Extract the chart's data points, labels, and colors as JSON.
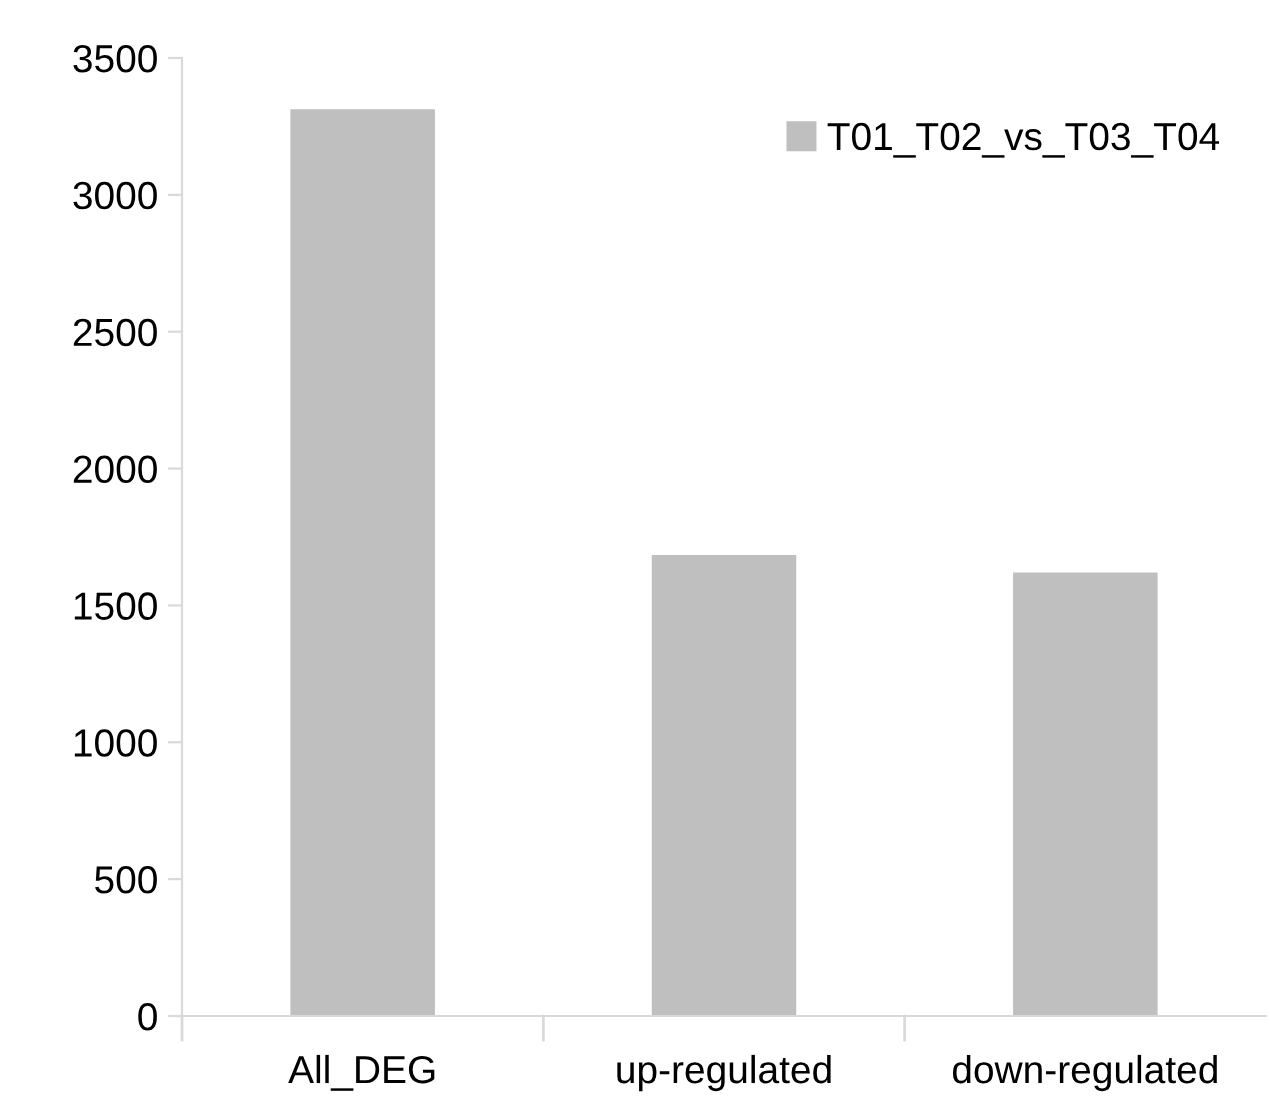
{
  "chart_data": {
    "type": "bar",
    "categories": [
      "All_DEG",
      "up-regulated",
      "down-regulated"
    ],
    "series": [
      {
        "name": "T01_T02_vs_T03_T04",
        "color": "#bfbfbf",
        "values": [
          3313,
          1684,
          1620
        ]
      }
    ],
    "ylim": [
      0,
      3500
    ],
    "yticks": [
      0,
      500,
      1000,
      1500,
      2000,
      2500,
      3000,
      3500
    ],
    "grid": false,
    "legend": "top right"
  }
}
